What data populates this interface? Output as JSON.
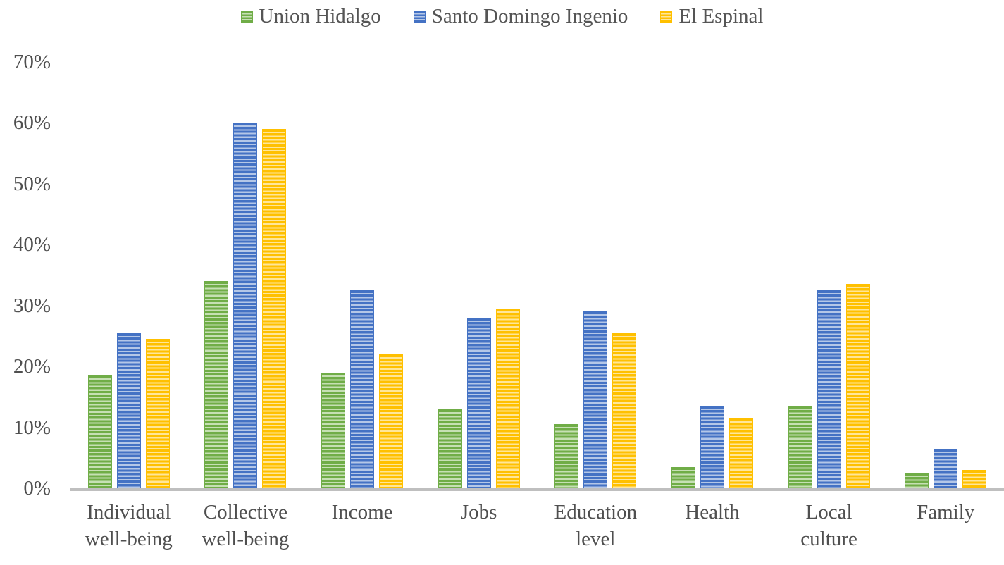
{
  "chart_data": {
    "type": "bar",
    "title": "",
    "xlabel": "",
    "ylabel": "",
    "ylim": [
      0,
      70
    ],
    "grid": false,
    "legend_position": "top",
    "categories": [
      "Individual\nwell-being",
      "Collective\nwell-being",
      "Income",
      "Jobs",
      "Education\nlevel",
      "Health",
      "Local\nculture",
      "Family"
    ],
    "series": [
      {
        "name": "Union Hidalgo",
        "color": "#70AD47",
        "color_light": "#C6E0B4",
        "values": [
          18.5,
          34,
          19,
          13,
          10.5,
          3.5,
          13.5,
          2.5
        ]
      },
      {
        "name": "Santo Domingo Ingenio",
        "color": "#4472C4",
        "color_light": "#B4C7E7",
        "values": [
          25.5,
          60,
          32.5,
          28,
          29,
          13.5,
          32.5,
          6.5
        ]
      },
      {
        "name": "El Espinal",
        "color": "#FFC000",
        "color_light": "#FFE699",
        "values": [
          24.5,
          59,
          22,
          29.5,
          25.5,
          11.5,
          33.5,
          3
        ]
      }
    ],
    "ytick_values": [
      0,
      10,
      20,
      30,
      40,
      50,
      60,
      70
    ],
    "ytick_suffix": "%"
  },
  "colors": {
    "axis_line": "#BFBFBF",
    "text": "#4F4F4F",
    "background": "#FFFFFF"
  }
}
